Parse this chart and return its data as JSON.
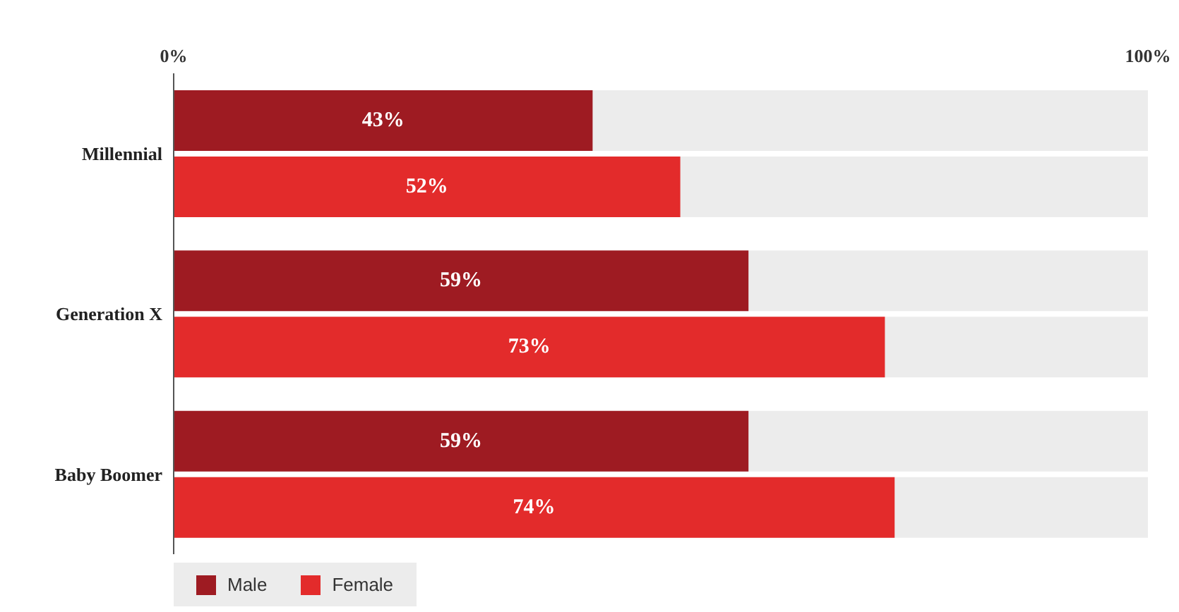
{
  "chart_data": {
    "type": "bar",
    "orientation": "horizontal",
    "categories": [
      "Millennial",
      "Generation X",
      "Baby Boomer"
    ],
    "series": [
      {
        "name": "Male",
        "color": "#9e1b22",
        "values": [
          43,
          59,
          59
        ],
        "value_labels": [
          "43%",
          "59%",
          "59%"
        ]
      },
      {
        "name": "Female",
        "color": "#e32b2b",
        "values": [
          52,
          73,
          74
        ],
        "value_labels": [
          "52%",
          "73%",
          "74%"
        ]
      }
    ],
    "xlim": [
      0,
      100
    ],
    "xticks": [
      {
        "value": 0,
        "label": "0%"
      },
      {
        "value": 100,
        "label": "100%"
      }
    ],
    "legend": "bottom left",
    "grid": false
  }
}
